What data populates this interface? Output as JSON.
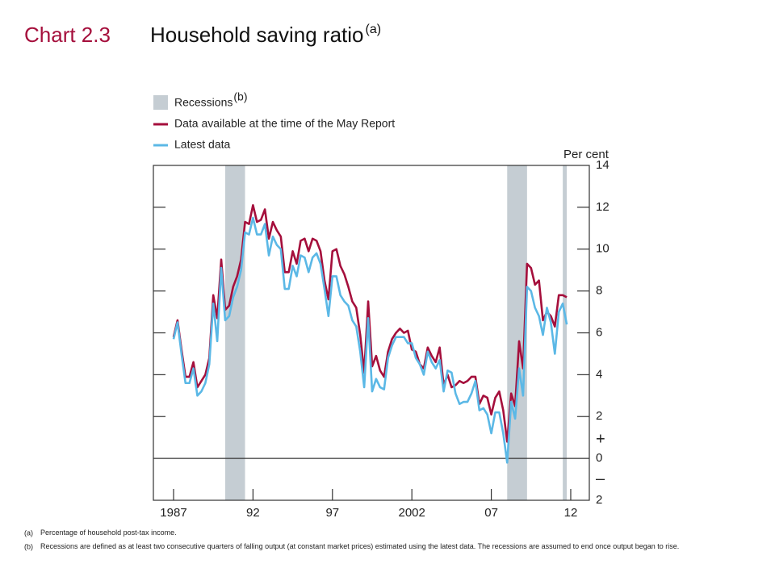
{
  "chart_data": {
    "type": "line",
    "title_number": "Chart 2.3",
    "title": "Household saving ratio",
    "title_note": "(a)",
    "y_unit_label": "Per cent",
    "sign_labels": [
      "+",
      "–"
    ],
    "recessions_name": "Recessions",
    "recessions_note": "(b)",
    "recessions_color": "#c5cdd3",
    "recessions": [
      [
        1990.25,
        1991.5
      ],
      [
        2008.0,
        2009.25
      ],
      [
        2011.5,
        2011.75
      ]
    ],
    "x": [
      1987.0,
      1987.25,
      1987.5,
      1987.75,
      1988.0,
      1988.25,
      1988.5,
      1988.75,
      1989.0,
      1989.25,
      1989.5,
      1989.75,
      1990.0,
      1990.25,
      1990.5,
      1990.75,
      1991.0,
      1991.25,
      1991.5,
      1991.75,
      1992.0,
      1992.25,
      1992.5,
      1992.75,
      1993.0,
      1993.25,
      1993.5,
      1993.75,
      1994.0,
      1994.25,
      1994.5,
      1994.75,
      1995.0,
      1995.25,
      1995.5,
      1995.75,
      1996.0,
      1996.25,
      1996.5,
      1996.75,
      1997.0,
      1997.25,
      1997.5,
      1997.75,
      1998.0,
      1998.25,
      1998.5,
      1998.75,
      1999.0,
      1999.25,
      1999.5,
      1999.75,
      2000.0,
      2000.25,
      2000.5,
      2000.75,
      2001.0,
      2001.25,
      2001.5,
      2001.75,
      2002.0,
      2002.25,
      2002.5,
      2002.75,
      2003.0,
      2003.25,
      2003.5,
      2003.75,
      2004.0,
      2004.25,
      2004.5,
      2004.75,
      2005.0,
      2005.25,
      2005.5,
      2005.75,
      2006.0,
      2006.25,
      2006.5,
      2006.75,
      2007.0,
      2007.25,
      2007.5,
      2007.75,
      2008.0,
      2008.25,
      2008.5,
      2008.75,
      2009.0,
      2009.25,
      2009.5,
      2009.75,
      2010.0,
      2010.25,
      2010.5,
      2010.75,
      2011.0,
      2011.25,
      2011.5,
      2011.75
    ],
    "series": [
      {
        "name": "Data available at the time of the May Report",
        "color": "#a50f3c",
        "values": [
          5.8,
          6.6,
          5.2,
          3.9,
          3.9,
          4.6,
          3.4,
          3.7,
          4.0,
          4.8,
          7.8,
          6.7,
          9.5,
          7.1,
          7.3,
          8.2,
          8.7,
          9.5,
          11.3,
          11.2,
          12.1,
          11.3,
          11.4,
          11.9,
          10.5,
          11.3,
          10.9,
          10.6,
          8.9,
          8.9,
          9.9,
          9.3,
          10.4,
          10.5,
          9.9,
          10.5,
          10.4,
          9.9,
          8.5,
          7.6,
          9.9,
          10.0,
          9.2,
          8.8,
          8.2,
          7.5,
          7.2,
          5.9,
          4.1,
          7.5,
          4.4,
          4.9,
          4.2,
          3.9,
          5.1,
          5.7,
          6.0,
          6.2,
          6.0,
          6.1,
          5.2,
          5.1,
          4.5,
          4.3,
          5.3,
          4.9,
          4.6,
          5.3,
          3.5,
          4.0,
          3.4,
          3.5,
          3.7,
          3.6,
          3.7,
          3.9,
          3.9,
          2.6,
          3.0,
          2.9,
          2.1,
          2.9,
          3.2,
          2.3,
          0.8,
          3.1,
          2.5,
          5.6,
          4.3,
          9.3,
          9.1,
          8.3,
          8.5,
          6.6,
          7.0,
          6.8,
          6.3,
          7.8,
          7.8,
          7.7
        ]
      },
      {
        "name": "Latest data",
        "color": "#5bb8e6",
        "values": [
          5.7,
          6.5,
          5.0,
          3.6,
          3.6,
          4.3,
          3.0,
          3.2,
          3.6,
          4.5,
          7.4,
          5.6,
          9.1,
          6.6,
          6.8,
          7.7,
          8.2,
          9.0,
          10.8,
          10.7,
          11.5,
          10.7,
          10.7,
          11.2,
          9.7,
          10.6,
          10.2,
          10.0,
          8.1,
          8.1,
          9.2,
          8.7,
          9.7,
          9.6,
          8.9,
          9.6,
          9.8,
          9.3,
          8.1,
          6.8,
          8.7,
          8.7,
          7.8,
          7.5,
          7.3,
          6.6,
          6.3,
          5.1,
          3.4,
          6.7,
          3.2,
          3.8,
          3.4,
          3.3,
          4.8,
          5.4,
          5.8,
          5.8,
          5.8,
          5.5,
          5.5,
          4.8,
          4.5,
          4.0,
          5.1,
          4.6,
          4.3,
          4.7,
          3.2,
          4.2,
          4.1,
          3.1,
          2.6,
          2.7,
          2.7,
          3.1,
          3.7,
          2.3,
          2.4,
          2.1,
          1.2,
          2.2,
          2.2,
          1.2,
          -0.2,
          2.7,
          1.9,
          4.3,
          3.0,
          8.2,
          8.0,
          7.2,
          6.8,
          5.9,
          7.2,
          6.5,
          5.0,
          7.0,
          7.4,
          6.4
        ]
      }
    ],
    "xlim": [
      1985.73,
      2013.17
    ],
    "xticks": [
      1987,
      {
        "value": 1992,
        "label": "92"
      },
      {
        "value": 1997,
        "label": "97"
      },
      2002,
      {
        "value": 2007,
        "label": "07"
      },
      {
        "value": 2012,
        "label": "12"
      }
    ],
    "ylim": [
      -2,
      14
    ],
    "yticks": [
      14,
      12,
      10,
      8,
      6,
      4,
      2,
      0,
      {
        "value": -2,
        "label": "2"
      }
    ],
    "footnotes": [
      {
        "marker": "(a)",
        "text": "Percentage of household post-tax income."
      },
      {
        "marker": "(b)",
        "text": "Recessions are defined as at least two consecutive quarters of falling output (at constant market prices) estimated using the latest data.  The recessions are assumed to end once output began to rise."
      }
    ]
  }
}
